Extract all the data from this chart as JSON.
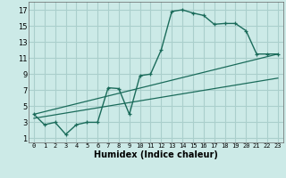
{
  "xlabel": "Humidex (Indice chaleur)",
  "background_color": "#cceae7",
  "grid_color": "#aacfcc",
  "line_color": "#1a6b5a",
  "xlim": [
    -0.5,
    23.5
  ],
  "ylim": [
    0.5,
    18
  ],
  "xticks": [
    0,
    1,
    2,
    3,
    4,
    5,
    6,
    7,
    8,
    9,
    10,
    11,
    12,
    13,
    14,
    15,
    16,
    17,
    18,
    19,
    20,
    21,
    22,
    23
  ],
  "yticks": [
    1,
    3,
    5,
    7,
    9,
    11,
    13,
    15,
    17
  ],
  "curve1_x": [
    0,
    1,
    2,
    3,
    4,
    5,
    6,
    7,
    8,
    9,
    10,
    11,
    12,
    13,
    14,
    15,
    16,
    17,
    18,
    19,
    20,
    21,
    22,
    23
  ],
  "curve1_y": [
    4.0,
    2.7,
    3.0,
    1.5,
    2.7,
    3.0,
    3.0,
    7.3,
    7.2,
    4.0,
    8.8,
    9.0,
    12.0,
    16.8,
    17.0,
    16.6,
    16.3,
    15.2,
    15.3,
    15.3,
    14.4,
    11.5,
    11.5,
    11.5
  ],
  "curve2_x": [
    0,
    23
  ],
  "curve2_y": [
    4.0,
    11.5
  ],
  "curve3_x": [
    0,
    23
  ],
  "curve3_y": [
    3.5,
    8.5
  ],
  "marker": "+"
}
